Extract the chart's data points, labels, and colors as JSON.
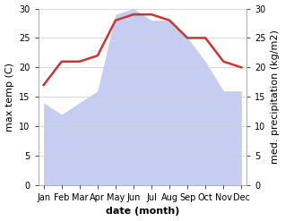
{
  "months": [
    "Jan",
    "Feb",
    "Mar",
    "Apr",
    "May",
    "Jun",
    "Jul",
    "Aug",
    "Sep",
    "Oct",
    "Nov",
    "Dec"
  ],
  "temperature": [
    17,
    21,
    21,
    22,
    28,
    29,
    29,
    28,
    25,
    25,
    21,
    20
  ],
  "precipitation": [
    14,
    12,
    14,
    16,
    29,
    30,
    28,
    28,
    25,
    21,
    16,
    16
  ],
  "temp_color": "#cc3333",
  "precip_color": "#c5cef0",
  "ylim_left": [
    0,
    30
  ],
  "ylim_right": [
    0,
    30
  ],
  "xlabel": "date (month)",
  "ylabel_left": "max temp (C)",
  "ylabel_right": "med. precipitation (kg/m2)",
  "background_color": "#ffffff",
  "grid_color": "#cccccc",
  "temp_linewidth": 1.8,
  "tick_fontsize": 7,
  "label_fontsize": 8,
  "yticks": [
    0,
    5,
    10,
    15,
    20,
    25,
    30
  ]
}
